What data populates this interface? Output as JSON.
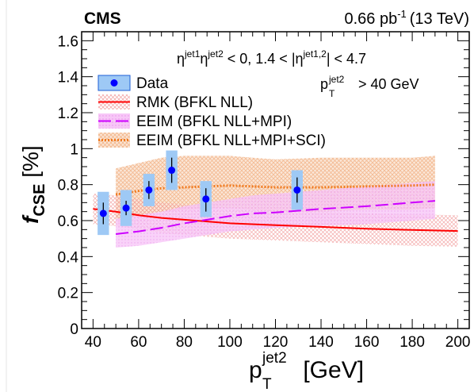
{
  "chart_data": {
    "type": "line",
    "experiment": "CMS",
    "luminosity_base": "0.66 pb",
    "luminosity_exp": "-1",
    "energy": "(13 TeV)",
    "cut_eta": {
      "a1": "η",
      "a1_sup": "jet1",
      "a2": "η",
      "a2_sup": "jet2",
      "mid": " < 0,  1.4 < |η",
      "b_sup": "jet1,2",
      "tail": "| < 4.7"
    },
    "cut_pt": {
      "base": "p",
      "sub": "T",
      "sup": "jet2",
      "tail": " > 40 GeV"
    },
    "xlabel": {
      "base": "p",
      "sub": "T",
      "sup": "jet2",
      "unit": " [GeV]"
    },
    "ylabel": {
      "base": "f",
      "sub": "CSE",
      "unit": " [%]"
    },
    "xlim": [
      35,
      205
    ],
    "ylim": [
      0,
      1.65
    ],
    "xticks": [
      40,
      60,
      80,
      100,
      120,
      140,
      160,
      180,
      200
    ],
    "yticks": [
      0,
      0.2,
      0.4,
      0.6,
      0.8,
      1,
      1.2,
      1.4,
      1.6
    ],
    "ytick_labels": [
      "0",
      "0.2",
      "0.4",
      "0.6",
      "0.8",
      "1",
      "1.2",
      "1.4",
      "1.6"
    ],
    "legend": {
      "data": "Data",
      "rmk": "RMK (BFKL NLL)",
      "eeim_mpi": "EEIM (BFKL NLL+MPI)",
      "eeim_sci": "EEIM (BFKL NLL+MPI+SCI)"
    },
    "colors": {
      "data": "#0000ff",
      "data_syst": "#9ec9f5",
      "rmk": "#ff0000",
      "rmk_band": "#f4b8b8",
      "mpi": "#cc00ff",
      "mpi_band": "#f4b3f4",
      "sci": "#f07a1e",
      "sci_band": "#f6ccb0"
    },
    "data_points": [
      {
        "x": 44.5,
        "y": 0.64,
        "stat_lo": 0.58,
        "stat_hi": 0.7,
        "sys_lo": 0.52,
        "sys_hi": 0.76
      },
      {
        "x": 54.5,
        "y": 0.67,
        "stat_lo": 0.63,
        "stat_hi": 0.71,
        "sys_lo": 0.57,
        "sys_hi": 0.77
      },
      {
        "x": 64.5,
        "y": 0.77,
        "stat_lo": 0.72,
        "stat_hi": 0.82,
        "sys_lo": 0.68,
        "sys_hi": 0.86
      },
      {
        "x": 74.5,
        "y": 0.88,
        "stat_lo": 0.81,
        "stat_hi": 0.95,
        "sys_lo": 0.77,
        "sys_hi": 0.99
      },
      {
        "x": 89.5,
        "y": 0.72,
        "stat_lo": 0.65,
        "stat_hi": 0.78,
        "sys_lo": 0.62,
        "sys_hi": 0.82
      },
      {
        "x": 129.5,
        "y": 0.77,
        "stat_lo": 0.7,
        "stat_hi": 0.84,
        "sys_lo": 0.66,
        "sys_hi": 0.88
      }
    ],
    "data_syst_halfwidth_gev": 2.5,
    "rmk": {
      "x": [
        40,
        50,
        60,
        70,
        80,
        90,
        100,
        120,
        140,
        160,
        180,
        200
      ],
      "y": [
        0.665,
        0.65,
        0.63,
        0.615,
        0.605,
        0.595,
        0.585,
        0.575,
        0.565,
        0.555,
        0.548,
        0.542
      ],
      "lo": [
        0.58,
        0.57,
        0.55,
        0.53,
        0.52,
        0.51,
        0.5,
        0.49,
        0.48,
        0.47,
        0.46,
        0.455
      ],
      "hi": [
        0.75,
        0.74,
        0.72,
        0.7,
        0.69,
        0.68,
        0.67,
        0.66,
        0.65,
        0.64,
        0.635,
        0.63
      ]
    },
    "eeim_mpi": {
      "x": [
        50,
        60,
        70,
        80,
        90,
        100,
        110,
        120,
        140,
        160,
        180,
        190
      ],
      "y": [
        0.525,
        0.54,
        0.56,
        0.585,
        0.605,
        0.625,
        0.64,
        0.645,
        0.665,
        0.68,
        0.7,
        0.71
      ],
      "lo": [
        0.45,
        0.46,
        0.48,
        0.5,
        0.52,
        0.54,
        0.55,
        0.56,
        0.57,
        0.58,
        0.6,
        0.61
      ],
      "hi": [
        0.61,
        0.63,
        0.65,
        0.68,
        0.7,
        0.72,
        0.74,
        0.75,
        0.77,
        0.79,
        0.81,
        0.82
      ]
    },
    "eeim_sci": {
      "x": [
        50,
        60,
        70,
        80,
        90,
        100,
        110,
        120,
        140,
        160,
        180,
        190
      ],
      "y": [
        0.745,
        0.765,
        0.78,
        0.785,
        0.79,
        0.795,
        0.79,
        0.785,
        0.785,
        0.79,
        0.795,
        0.8
      ],
      "lo": [
        0.6,
        0.63,
        0.65,
        0.66,
        0.67,
        0.67,
        0.66,
        0.65,
        0.65,
        0.66,
        0.66,
        0.67
      ],
      "hi": [
        0.89,
        0.92,
        0.95,
        0.96,
        0.96,
        0.96,
        0.95,
        0.94,
        0.95,
        0.95,
        0.95,
        0.96
      ]
    }
  }
}
